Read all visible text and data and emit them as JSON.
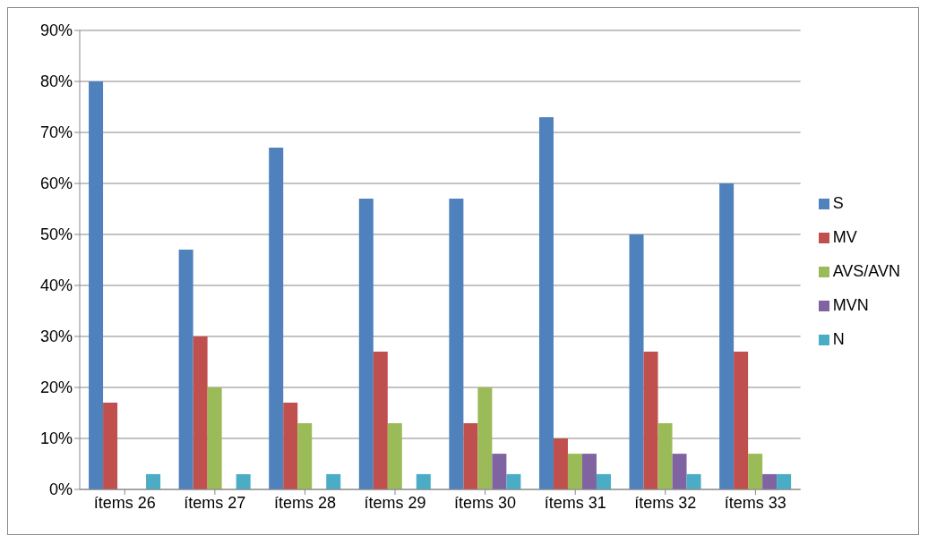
{
  "chart_data": {
    "type": "bar",
    "categories": [
      "ítems 26",
      "ítems 27",
      "ítems 28",
      "ítems 29",
      "ítems 30",
      "ítems 31",
      "ítems 32",
      "ítems 33"
    ],
    "series": [
      {
        "name": "S",
        "color": "#4f81bd",
        "values": [
          80,
          47,
          67,
          57,
          57,
          73,
          50,
          60
        ]
      },
      {
        "name": "MV",
        "color": "#c0504d",
        "values": [
          17,
          30,
          17,
          27,
          13,
          10,
          27,
          27
        ]
      },
      {
        "name": "AVS/AVN",
        "color": "#9bbb59",
        "values": [
          0,
          20,
          13,
          13,
          20,
          7,
          13,
          7
        ]
      },
      {
        "name": "MVN",
        "color": "#8064a2",
        "values": [
          0,
          0,
          0,
          0,
          7,
          7,
          7,
          3
        ]
      },
      {
        "name": "N",
        "color": "#4bacc6",
        "values": [
          3,
          3,
          3,
          3,
          3,
          3,
          3,
          3
        ]
      }
    ],
    "ylim": [
      0,
      90
    ],
    "yticks": [
      {
        "value": 0,
        "label": "0%"
      },
      {
        "value": 10,
        "label": "10%"
      },
      {
        "value": 20,
        "label": "20%"
      },
      {
        "value": 30,
        "label": "30%"
      },
      {
        "value": 40,
        "label": "40%"
      },
      {
        "value": 50,
        "label": "50%"
      },
      {
        "value": 60,
        "label": "60%"
      },
      {
        "value": 70,
        "label": "70%"
      },
      {
        "value": 80,
        "label": "80%"
      },
      {
        "value": 90,
        "label": "90%"
      }
    ],
    "grid": "y",
    "legend": "right"
  }
}
